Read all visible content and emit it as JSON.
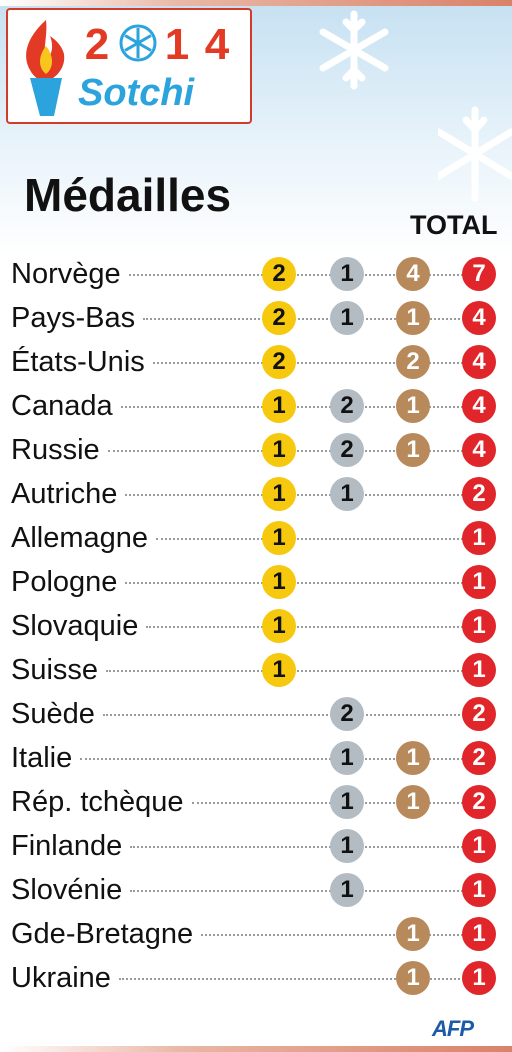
{
  "header": {
    "logo_year": [
      "2",
      "",
      "1",
      "4"
    ],
    "logo_city": "Sotchi",
    "title": "Médailles",
    "total_label": "TOTAL"
  },
  "footer": {
    "credit": "AFP"
  },
  "colors": {
    "gold": "#f6c90e",
    "silver": "#b4bcc3",
    "bronze": "#b88a5b",
    "total": "#e0262a"
  },
  "chart_data": {
    "type": "table",
    "title": "Médailles",
    "columns": [
      "gold",
      "silver",
      "bronze",
      "TOTAL"
    ],
    "rows": [
      {
        "country": "Norvège",
        "gold": 2,
        "silver": 1,
        "bronze": 4,
        "total": 7
      },
      {
        "country": "Pays-Bas",
        "gold": 2,
        "silver": 1,
        "bronze": 1,
        "total": 4
      },
      {
        "country": "États-Unis",
        "gold": 2,
        "silver": null,
        "bronze": 2,
        "total": 4
      },
      {
        "country": "Canada",
        "gold": 1,
        "silver": 2,
        "bronze": 1,
        "total": 4
      },
      {
        "country": "Russie",
        "gold": 1,
        "silver": 2,
        "bronze": 1,
        "total": 4
      },
      {
        "country": "Autriche",
        "gold": 1,
        "silver": 1,
        "bronze": null,
        "total": 2
      },
      {
        "country": "Allemagne",
        "gold": 1,
        "silver": null,
        "bronze": null,
        "total": 1
      },
      {
        "country": "Pologne",
        "gold": 1,
        "silver": null,
        "bronze": null,
        "total": 1
      },
      {
        "country": "Slovaquie",
        "gold": 1,
        "silver": null,
        "bronze": null,
        "total": 1
      },
      {
        "country": "Suisse",
        "gold": 1,
        "silver": null,
        "bronze": null,
        "total": 1
      },
      {
        "country": "Suède",
        "gold": null,
        "silver": 2,
        "bronze": null,
        "total": 2
      },
      {
        "country": "Italie",
        "gold": null,
        "silver": 1,
        "bronze": 1,
        "total": 2
      },
      {
        "country": "Rép. tchèque",
        "gold": null,
        "silver": 1,
        "bronze": 1,
        "total": 2
      },
      {
        "country": "Finlande",
        "gold": null,
        "silver": 1,
        "bronze": null,
        "total": 1
      },
      {
        "country": "Slovénie",
        "gold": null,
        "silver": 1,
        "bronze": null,
        "total": 1
      },
      {
        "country": "Gde-Bretagne",
        "gold": null,
        "silver": null,
        "bronze": 1,
        "total": 1
      },
      {
        "country": "Ukraine",
        "gold": null,
        "silver": null,
        "bronze": 1,
        "total": 1
      }
    ]
  }
}
